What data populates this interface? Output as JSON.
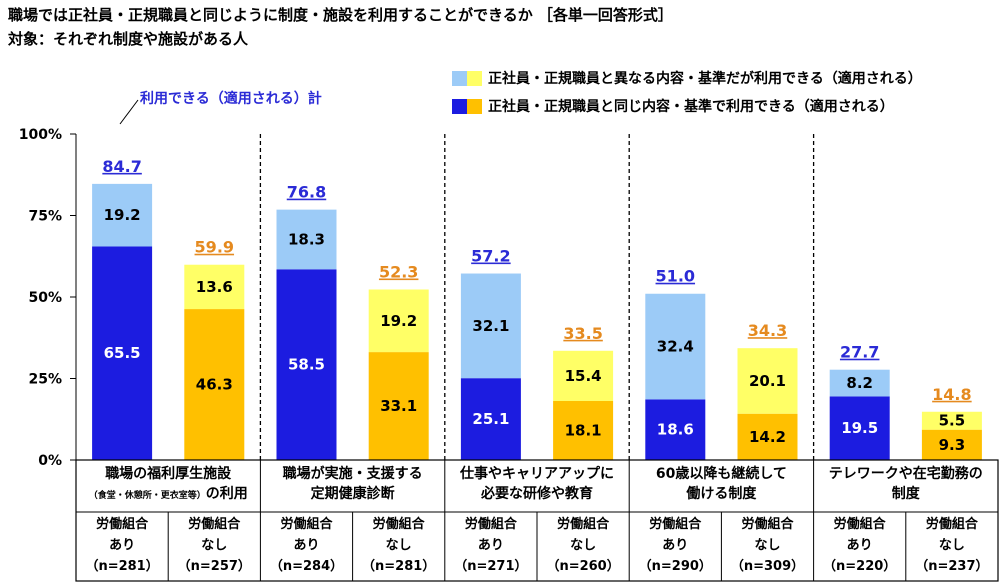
{
  "header": {
    "title": "職場では正社員・正規職員と同じように制度・施設を利用することができるか ［各単一回答形式］",
    "subtitle": "対象：それぞれ制度や施設がある人"
  },
  "annotation": {
    "total_label": "利用できる（適用される）計"
  },
  "chart_data": {
    "type": "bar",
    "stacked": true,
    "ylim": [
      0,
      100
    ],
    "yticks": [
      "0%",
      "25%",
      "50%",
      "75%",
      "100%"
    ],
    "colors": {
      "union_same": "#1c1ce0",
      "union_diff": "#9ccbf7",
      "nounion_same": "#ffc000",
      "nounion_diff": "#ffff66",
      "union_total_text": "#2b2bd6",
      "nounion_total_text": "#e58a1f"
    },
    "legend": [
      {
        "name": "正社員・正規職員と異なる内容・基準だが利用できる（適用される）",
        "colors": [
          "#9ccbf7",
          "#ffff66"
        ]
      },
      {
        "name": "正社員・正規職員と同じ内容・基準で利用できる（適用される）",
        "colors": [
          "#1c1ce0",
          "#ffc000"
        ]
      }
    ],
    "categories": [
      {
        "label_line1": "職場の福利厚生施設",
        "label_line2_small": "（食堂・休憩所・更衣室等）",
        "label_line2": "の利用",
        "groups": [
          {
            "label1": "労働組合",
            "label2": "あり",
            "n": "（n=281）",
            "same": 65.5,
            "diff": 19.2,
            "total": "84.7",
            "kind": "union"
          },
          {
            "label1": "労働組合",
            "label2": "なし",
            "n": "（n=257）",
            "same": 46.3,
            "diff": 13.6,
            "total": "59.9",
            "kind": "nounion"
          }
        ]
      },
      {
        "label_line1": "職場が実施・支援する",
        "label_line2_small": "",
        "label_line2": "定期健康診断",
        "groups": [
          {
            "label1": "労働組合",
            "label2": "あり",
            "n": "（n=284）",
            "same": 58.5,
            "diff": 18.3,
            "total": "76.8",
            "kind": "union"
          },
          {
            "label1": "労働組合",
            "label2": "なし",
            "n": "（n=281）",
            "same": 33.1,
            "diff": 19.2,
            "total": "52.3",
            "kind": "nounion"
          }
        ]
      },
      {
        "label_line1": "仕事やキャリアアップに",
        "label_line2_small": "",
        "label_line2": "必要な研修や教育",
        "groups": [
          {
            "label1": "労働組合",
            "label2": "あり",
            "n": "（n=271）",
            "same": 25.1,
            "diff": 32.1,
            "total": "57.2",
            "kind": "union"
          },
          {
            "label1": "労働組合",
            "label2": "なし",
            "n": "（n=260）",
            "same": 18.1,
            "diff": 15.4,
            "total": "33.5",
            "kind": "nounion"
          }
        ]
      },
      {
        "label_line1": "60歳以降も継続して",
        "label_line2_small": "",
        "label_line2": "働ける制度",
        "groups": [
          {
            "label1": "労働組合",
            "label2": "あり",
            "n": "（n=290）",
            "same": 18.6,
            "diff": 32.4,
            "total": "51.0",
            "kind": "union"
          },
          {
            "label1": "労働組合",
            "label2": "なし",
            "n": "（n=309）",
            "same": 14.2,
            "diff": 20.1,
            "total": "34.3",
            "kind": "nounion"
          }
        ]
      },
      {
        "label_line1": "テレワークや在宅勤務の",
        "label_line2_small": "",
        "label_line2": "制度",
        "groups": [
          {
            "label1": "労働組合",
            "label2": "あり",
            "n": "（n=220）",
            "same": 19.5,
            "diff": 8.2,
            "total": "27.7",
            "kind": "union"
          },
          {
            "label1": "労働組合",
            "label2": "なし",
            "n": "（n=237）",
            "same": 9.3,
            "diff": 5.5,
            "total": "14.8",
            "kind": "nounion"
          }
        ]
      }
    ]
  }
}
